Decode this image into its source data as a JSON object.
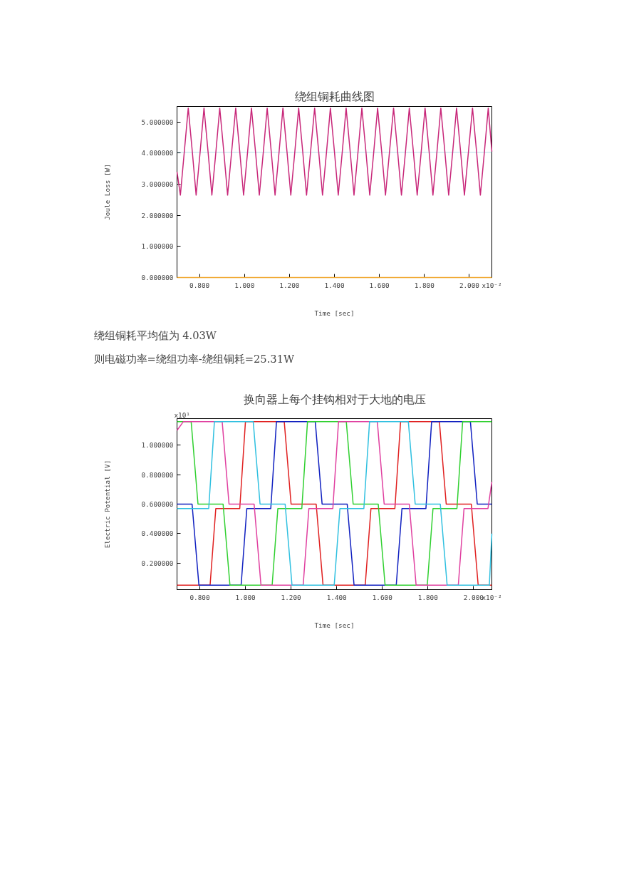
{
  "chart_data": [
    {
      "type": "line",
      "title": "绕组铜耗曲线图",
      "xlabel": "Time [sec]",
      "ylabel": "Joule Loss [W]",
      "annotations": [
        "x10⁻²",
        "绕组铜耗平均值为 4.03W",
        "则电磁功率=绕组功率-绕组铜耗=25.31W"
      ],
      "xlim": [
        0.7,
        2.1
      ],
      "ylim": [
        0,
        5.5
      ],
      "xticks": [
        {
          "value": 0.8,
          "label": "0.800"
        },
        {
          "value": 1.0,
          "label": "1.000"
        },
        {
          "value": 1.2,
          "label": "1.200"
        },
        {
          "value": 1.4,
          "label": "1.400"
        },
        {
          "value": 1.6,
          "label": "1.600"
        },
        {
          "value": 1.8,
          "label": "1.800"
        },
        {
          "value": 2.0,
          "label": "2.000"
        }
      ],
      "yticks": [
        {
          "value": 0,
          "label": "0.000000"
        },
        {
          "value": 1,
          "label": "1.000000"
        },
        {
          "value": 2,
          "label": "2.000000"
        },
        {
          "value": 3,
          "label": "3.000000"
        },
        {
          "value": 4,
          "label": "4.000000"
        },
        {
          "value": 5,
          "label": "5.000000"
        }
      ],
      "ref_lines": [
        {
          "axis": "y",
          "value": 4.03,
          "color": "#b8dce8"
        }
      ],
      "series": [
        {
          "color": "#c8287a",
          "x": [
            0.7,
            0.715,
            0.75,
            0.768,
            0.785,
            0.803,
            0.82,
            0.838,
            0.855,
            0.873,
            0.89,
            0.908,
            0.925,
            0.943,
            0.961,
            0.979,
            0.996,
            1.014,
            1.031,
            1.049,
            1.066,
            1.084,
            1.101,
            1.119,
            1.136,
            1.154,
            1.171,
            1.189,
            1.206,
            1.224,
            1.241,
            1.259,
            1.276,
            1.294,
            1.312,
            1.33,
            1.347,
            1.365,
            1.382,
            1.4,
            1.417,
            1.435,
            1.452,
            1.47,
            1.487,
            1.505,
            1.522,
            1.54,
            1.557,
            1.575,
            1.592,
            1.61,
            1.627,
            1.645,
            1.663,
            1.681,
            1.698,
            1.716,
            1.733,
            1.751,
            1.768,
            1.786,
            1.803,
            1.821,
            1.838,
            1.856,
            1.873,
            1.891,
            1.908,
            1.926,
            1.943,
            1.961,
            1.978,
            1.996,
            2.014,
            2.032,
            2.049,
            2.067,
            2.084,
            2.1
          ],
          "values": [
            3.4,
            2.65,
            5.45,
            4.05,
            2.65,
            4.05,
            5.45,
            4.05,
            2.65,
            4.05,
            5.45,
            4.05,
            2.65,
            4.05,
            5.45,
            4.05,
            2.65,
            4.05,
            5.45,
            4.05,
            2.65,
            4.05,
            5.45,
            4.05,
            2.65,
            4.05,
            5.45,
            4.05,
            2.65,
            4.05,
            5.45,
            4.05,
            2.65,
            4.05,
            5.45,
            4.05,
            2.65,
            4.05,
            5.45,
            4.05,
            2.65,
            4.05,
            5.45,
            4.05,
            2.65,
            4.05,
            5.45,
            4.05,
            2.65,
            4.05,
            5.45,
            4.05,
            2.65,
            4.05,
            5.45,
            4.05,
            2.65,
            4.05,
            5.45,
            4.05,
            2.65,
            4.05,
            5.45,
            4.05,
            2.65,
            4.05,
            5.45,
            4.05,
            2.65,
            4.05,
            5.45,
            4.05,
            2.65,
            4.05,
            5.45,
            4.05,
            2.65,
            4.05,
            5.45,
            4.05
          ]
        },
        {
          "color": "#f0a830",
          "x": [
            0.7,
            2.1
          ],
          "values": [
            0,
            0
          ]
        }
      ]
    },
    {
      "type": "line",
      "title": "换向器上每个挂钩相对于大地的电压",
      "xlabel": "Time [sec]",
      "ylabel": "Electric Potential [V]",
      "annotations": [
        "x10⁻²",
        "x10¹"
      ],
      "xlim": [
        0.7,
        2.08
      ],
      "ylim": [
        0.02,
        1.18
      ],
      "xticks": [
        {
          "value": 0.8,
          "label": "0.800"
        },
        {
          "value": 1.0,
          "label": "1.000"
        },
        {
          "value": 1.2,
          "label": "1.200"
        },
        {
          "value": 1.4,
          "label": "1.400"
        },
        {
          "value": 1.6,
          "label": "1.600"
        },
        {
          "value": 1.8,
          "label": "1.800"
        },
        {
          "value": 2.0,
          "label": "2.000"
        }
      ],
      "yticks": [
        {
          "value": 0.2,
          "label": "0.200000"
        },
        {
          "value": 0.4,
          "label": "0.400000"
        },
        {
          "value": 0.6,
          "label": "0.600000"
        },
        {
          "value": 0.8,
          "label": "0.800000"
        },
        {
          "value": 1.0,
          "label": "1.000000"
        }
      ],
      "series": [
        {
          "color": "#e02020",
          "x": [
            0.7,
            0.845,
            0.87,
            0.975,
            1.0,
            1.17,
            1.2,
            1.31,
            1.34,
            1.525,
            1.55,
            1.655,
            1.68,
            1.85,
            1.88,
            1.99,
            2.02,
            2.08
          ],
          "values": [
            0.05,
            0.05,
            0.57,
            0.57,
            1.16,
            1.16,
            0.6,
            0.6,
            0.05,
            0.05,
            0.57,
            0.57,
            1.16,
            1.16,
            0.6,
            0.6,
            0.05,
            0.05
          ]
        },
        {
          "color": "#1020c0",
          "x": [
            0.7,
            0.766,
            0.796,
            0.981,
            1.006,
            1.111,
            1.136,
            1.306,
            1.336,
            1.446,
            1.476,
            1.661,
            1.686,
            1.791,
            1.816,
            1.986,
            2.016,
            2.08
          ],
          "values": [
            0.6,
            0.6,
            0.05,
            0.05,
            0.57,
            0.57,
            1.16,
            1.16,
            0.6,
            0.6,
            0.05,
            0.05,
            0.57,
            0.57,
            1.16,
            1.16,
            0.6,
            0.6
          ]
        },
        {
          "color": "#30d030",
          "x": [
            0.7,
            0.762,
            0.792,
            0.902,
            0.932,
            1.117,
            1.142,
            1.247,
            1.272,
            1.442,
            1.472,
            1.582,
            1.612,
            1.797,
            1.822,
            1.927,
            1.952,
            2.08
          ],
          "values": [
            1.16,
            1.16,
            0.6,
            0.6,
            0.05,
            0.05,
            0.57,
            0.57,
            1.16,
            1.16,
            0.6,
            0.6,
            0.05,
            0.05,
            0.57,
            0.57,
            1.16,
            1.16
          ]
        },
        {
          "color": "#e040a0",
          "x": [
            0.7,
            0.728,
            0.898,
            0.928,
            1.038,
            1.068,
            1.253,
            1.278,
            1.383,
            1.408,
            1.578,
            1.608,
            1.718,
            1.748,
            1.933,
            1.958,
            2.063,
            2.08
          ],
          "values": [
            1.1,
            1.16,
            1.16,
            0.6,
            0.6,
            0.05,
            0.05,
            0.57,
            0.57,
            1.16,
            1.16,
            0.6,
            0.6,
            0.05,
            0.05,
            0.57,
            0.57,
            0.75
          ]
        },
        {
          "color": "#30c0e0",
          "x": [
            0.7,
            0.839,
            0.864,
            1.034,
            1.064,
            1.174,
            1.204,
            1.389,
            1.414,
            1.519,
            1.544,
            1.714,
            1.744,
            1.854,
            1.884,
            2.069,
            2.08
          ],
          "values": [
            0.57,
            0.57,
            1.16,
            1.16,
            0.6,
            0.6,
            0.05,
            0.05,
            0.57,
            0.57,
            1.16,
            1.16,
            0.6,
            0.6,
            0.05,
            0.05,
            0.4
          ]
        }
      ]
    }
  ]
}
